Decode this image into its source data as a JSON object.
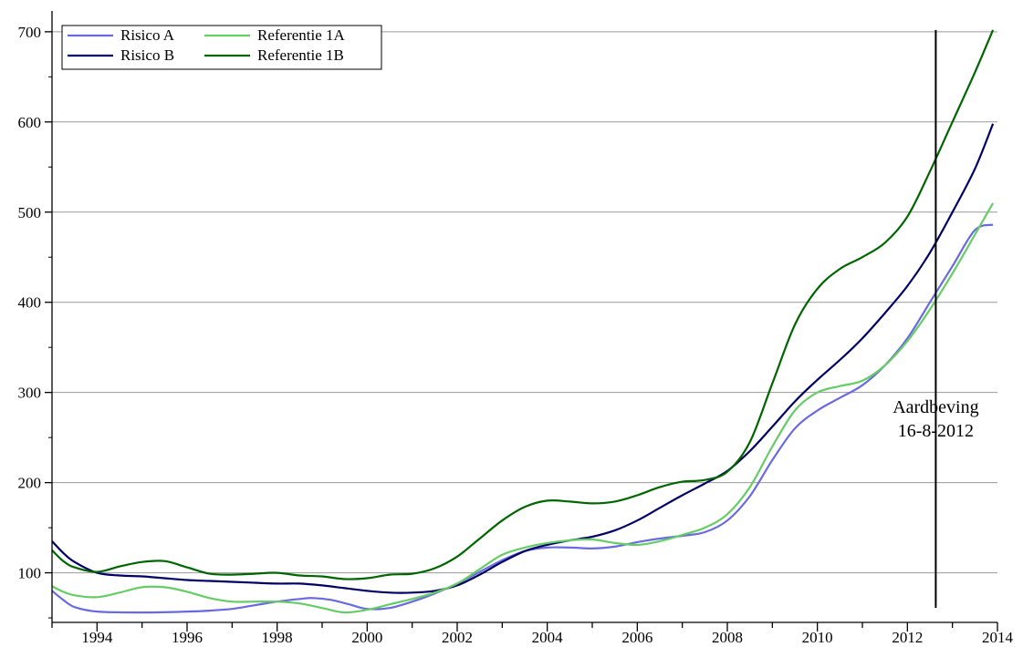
{
  "chart_data": {
    "type": "line",
    "title": "",
    "xlabel": "",
    "ylabel": "",
    "xlim": [
      1993.0,
      2014.0
    ],
    "ylim": [
      45,
      715
    ],
    "x_ticks": [
      1994,
      1996,
      1998,
      2000,
      2002,
      2004,
      2006,
      2008,
      2010,
      2012,
      2014
    ],
    "y_ticks": [
      100,
      200,
      300,
      400,
      500,
      600,
      700
    ],
    "grid": "horizontal",
    "legend_position": "top-left",
    "annotation": {
      "x": 2012.63,
      "line1": "Aardbeving",
      "line2": "16-8-2012"
    },
    "series": [
      {
        "name": "Risico A",
        "color": "#6a6ae0",
        "points": [
          [
            1993.0,
            80
          ],
          [
            1993.25,
            70
          ],
          [
            1993.5,
            62
          ],
          [
            1994.0,
            57
          ],
          [
            1995.0,
            56
          ],
          [
            1996.0,
            57
          ],
          [
            1996.5,
            58
          ],
          [
            1997.0,
            60
          ],
          [
            1997.5,
            64
          ],
          [
            1998.0,
            68
          ],
          [
            1998.5,
            71
          ],
          [
            1998.8,
            72
          ],
          [
            1999.2,
            70
          ],
          [
            1999.6,
            65
          ],
          [
            2000.0,
            60
          ],
          [
            2000.5,
            61
          ],
          [
            2001.0,
            68
          ],
          [
            2001.5,
            77
          ],
          [
            2002.0,
            88
          ],
          [
            2002.5,
            101
          ],
          [
            2003.0,
            114
          ],
          [
            2003.5,
            124
          ],
          [
            2004.0,
            128
          ],
          [
            2004.5,
            128
          ],
          [
            2005.0,
            127
          ],
          [
            2005.5,
            129
          ],
          [
            2006.0,
            134
          ],
          [
            2006.5,
            138
          ],
          [
            2007.0,
            141
          ],
          [
            2007.5,
            145
          ],
          [
            2008.0,
            158
          ],
          [
            2008.5,
            185
          ],
          [
            2009.0,
            225
          ],
          [
            2009.5,
            260
          ],
          [
            2010.0,
            280
          ],
          [
            2010.5,
            294
          ],
          [
            2011.0,
            308
          ],
          [
            2011.5,
            330
          ],
          [
            2012.0,
            360
          ],
          [
            2012.5,
            400
          ],
          [
            2013.0,
            440
          ],
          [
            2013.5,
            480
          ],
          [
            2013.9,
            486
          ]
        ]
      },
      {
        "name": "Risico B",
        "color": "#000066",
        "points": [
          [
            1993.0,
            135
          ],
          [
            1993.25,
            122
          ],
          [
            1993.5,
            112
          ],
          [
            1994.0,
            100
          ],
          [
            1994.5,
            97
          ],
          [
            1995.0,
            96
          ],
          [
            1995.5,
            94
          ],
          [
            1996.0,
            92
          ],
          [
            1996.5,
            91
          ],
          [
            1997.0,
            90
          ],
          [
            1997.5,
            89
          ],
          [
            1998.0,
            88
          ],
          [
            1998.5,
            88
          ],
          [
            1999.0,
            86
          ],
          [
            1999.5,
            83
          ],
          [
            2000.0,
            80
          ],
          [
            2000.5,
            78
          ],
          [
            2001.0,
            78
          ],
          [
            2001.5,
            80
          ],
          [
            2002.0,
            86
          ],
          [
            2002.5,
            98
          ],
          [
            2003.0,
            112
          ],
          [
            2003.5,
            124
          ],
          [
            2004.0,
            131
          ],
          [
            2004.5,
            136
          ],
          [
            2005.0,
            140
          ],
          [
            2005.5,
            147
          ],
          [
            2006.0,
            158
          ],
          [
            2006.5,
            172
          ],
          [
            2007.0,
            186
          ],
          [
            2007.5,
            199
          ],
          [
            2008.0,
            213
          ],
          [
            2008.5,
            235
          ],
          [
            2009.0,
            262
          ],
          [
            2009.5,
            290
          ],
          [
            2010.0,
            314
          ],
          [
            2010.5,
            336
          ],
          [
            2011.0,
            360
          ],
          [
            2011.5,
            388
          ],
          [
            2012.0,
            418
          ],
          [
            2012.5,
            455
          ],
          [
            2013.0,
            500
          ],
          [
            2013.5,
            548
          ],
          [
            2013.9,
            598
          ]
        ]
      },
      {
        "name": "Referentie 1A",
        "color": "#66cc66",
        "points": [
          [
            1993.0,
            85
          ],
          [
            1993.25,
            79
          ],
          [
            1993.5,
            75
          ],
          [
            1994.0,
            73
          ],
          [
            1994.5,
            78
          ],
          [
            1995.0,
            84
          ],
          [
            1995.5,
            84
          ],
          [
            1996.0,
            79
          ],
          [
            1996.5,
            72
          ],
          [
            1997.0,
            68
          ],
          [
            1997.5,
            68
          ],
          [
            1998.0,
            68
          ],
          [
            1998.5,
            66
          ],
          [
            1999.0,
            61
          ],
          [
            1999.5,
            56
          ],
          [
            2000.0,
            59
          ],
          [
            2000.5,
            65
          ],
          [
            2001.0,
            71
          ],
          [
            2001.5,
            78
          ],
          [
            2002.0,
            88
          ],
          [
            2002.5,
            104
          ],
          [
            2003.0,
            120
          ],
          [
            2003.5,
            128
          ],
          [
            2004.0,
            133
          ],
          [
            2004.5,
            136
          ],
          [
            2005.0,
            137
          ],
          [
            2005.5,
            133
          ],
          [
            2006.0,
            131
          ],
          [
            2006.5,
            135
          ],
          [
            2007.0,
            142
          ],
          [
            2007.5,
            150
          ],
          [
            2008.0,
            165
          ],
          [
            2008.5,
            195
          ],
          [
            2009.0,
            240
          ],
          [
            2009.5,
            280
          ],
          [
            2010.0,
            300
          ],
          [
            2010.5,
            307
          ],
          [
            2011.0,
            313
          ],
          [
            2011.5,
            330
          ],
          [
            2012.0,
            357
          ],
          [
            2012.5,
            392
          ],
          [
            2013.0,
            432
          ],
          [
            2013.5,
            475
          ],
          [
            2013.9,
            510
          ]
        ]
      },
      {
        "name": "Referentie 1B",
        "color": "#006600",
        "points": [
          [
            1993.0,
            125
          ],
          [
            1993.25,
            113
          ],
          [
            1993.5,
            106
          ],
          [
            1994.0,
            101
          ],
          [
            1994.5,
            107
          ],
          [
            1995.0,
            112
          ],
          [
            1995.5,
            113
          ],
          [
            1996.0,
            106
          ],
          [
            1996.5,
            99
          ],
          [
            1997.0,
            98
          ],
          [
            1997.5,
            99
          ],
          [
            1998.0,
            100
          ],
          [
            1998.5,
            97
          ],
          [
            1999.0,
            96
          ],
          [
            1999.5,
            93
          ],
          [
            2000.0,
            94
          ],
          [
            2000.5,
            98
          ],
          [
            2001.0,
            99
          ],
          [
            2001.5,
            105
          ],
          [
            2002.0,
            118
          ],
          [
            2002.5,
            138
          ],
          [
            2003.0,
            158
          ],
          [
            2003.5,
            173
          ],
          [
            2004.0,
            180
          ],
          [
            2004.5,
            179
          ],
          [
            2005.0,
            177
          ],
          [
            2005.5,
            179
          ],
          [
            2006.0,
            186
          ],
          [
            2006.5,
            195
          ],
          [
            2007.0,
            201
          ],
          [
            2007.5,
            203
          ],
          [
            2008.0,
            212
          ],
          [
            2008.5,
            245
          ],
          [
            2009.0,
            310
          ],
          [
            2009.5,
            375
          ],
          [
            2010.0,
            415
          ],
          [
            2010.5,
            437
          ],
          [
            2011.0,
            450
          ],
          [
            2011.5,
            466
          ],
          [
            2012.0,
            495
          ],
          [
            2012.5,
            545
          ],
          [
            2013.0,
            600
          ],
          [
            2013.5,
            655
          ],
          [
            2013.9,
            702
          ]
        ]
      }
    ]
  }
}
